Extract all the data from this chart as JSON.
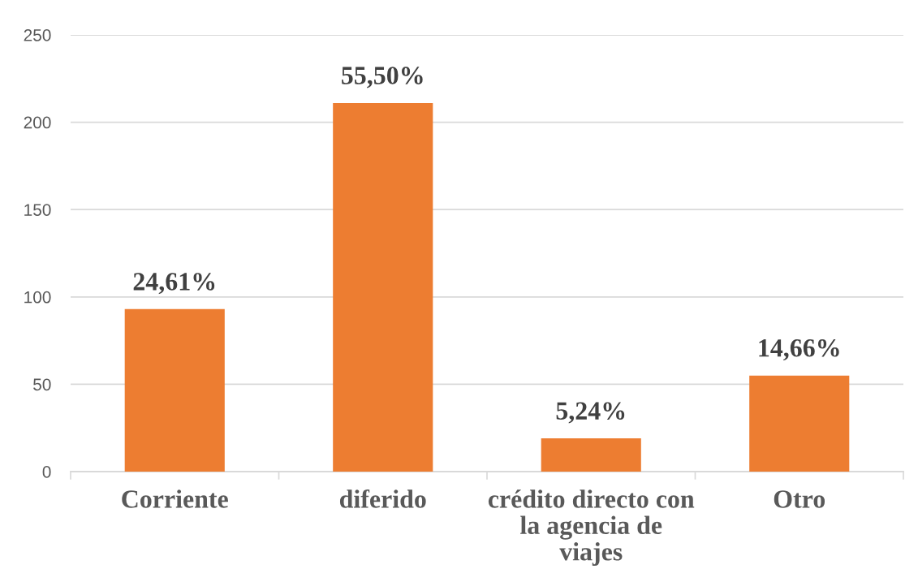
{
  "chart_data": {
    "type": "bar",
    "categories": [
      "Corriente",
      "diferido",
      "crédito directo con\nla agencia de\nviajes",
      "Otro"
    ],
    "values": [
      93,
      211,
      19,
      55
    ],
    "color": "#ed7d31",
    "annotations": [
      {
        "text": "24,61%",
        "x": "Corriente",
        "y": 93
      },
      {
        "text": "55,50%",
        "x": "diferido",
        "y": 211
      },
      {
        "text": "5,24%",
        "x": "crédito directo con\nla agencia de\nviajes",
        "y": 19
      },
      {
        "text": "14,66%",
        "x": "Otro",
        "y": 55
      }
    ],
    "ylim": [
      0,
      250
    ],
    "yticks": [
      0,
      50,
      100,
      150,
      200,
      250
    ],
    "grid": "y"
  }
}
